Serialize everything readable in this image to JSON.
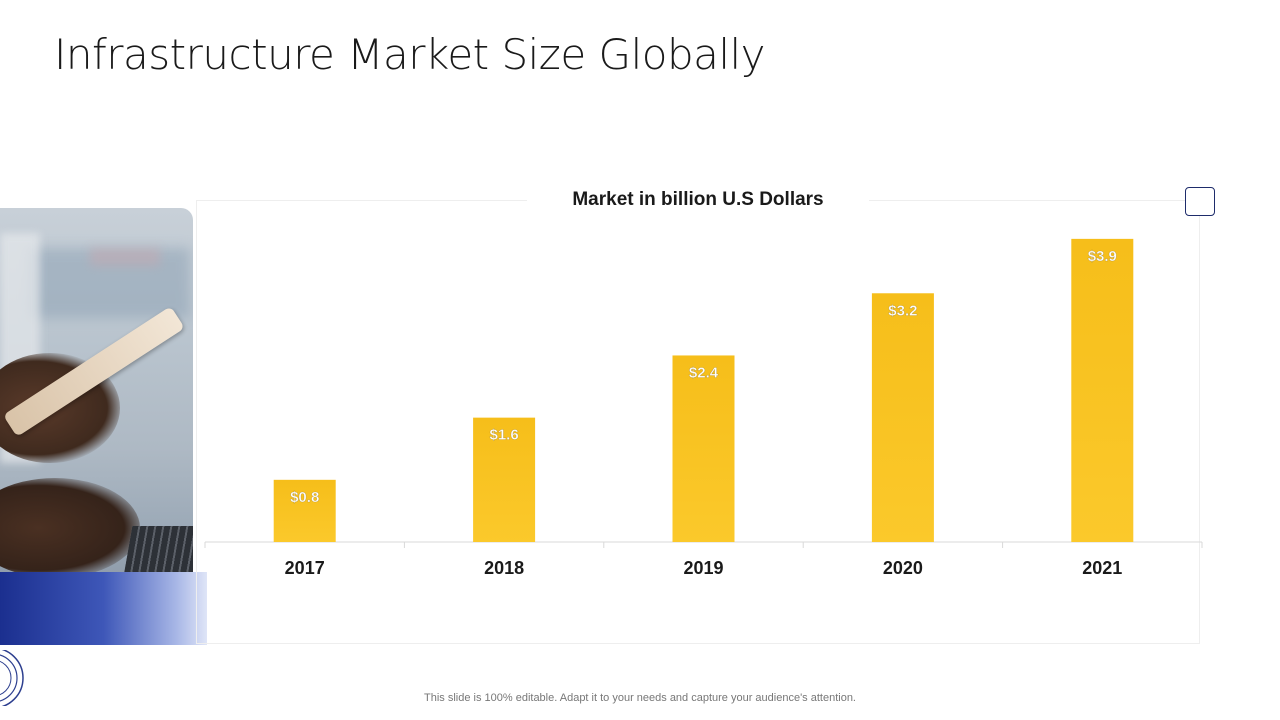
{
  "slide": {
    "title": "Infrastructure Market Size Globally",
    "footnote": "This slide is 100% editable. Adapt it to your needs and capture your audience's attention."
  },
  "colors": {
    "bar": "#F6BE1A",
    "bar_light": "#FBC92B",
    "axis": "#D9D9D9",
    "accent_blue": "#1E2C6B"
  },
  "chart_data": {
    "type": "bar",
    "title": "Market in billion U.S Dollars",
    "categories": [
      "2017",
      "2018",
      "2019",
      "2020",
      "2021"
    ],
    "values": [
      0.8,
      1.6,
      2.4,
      3.2,
      3.9
    ],
    "data_labels": [
      "$0.8",
      "$1.6",
      "$2.4",
      "$3.2",
      "$3.9"
    ],
    "xlabel": "",
    "ylabel": "",
    "ylim": [
      0,
      4.4
    ],
    "grid": false,
    "legend": "none"
  }
}
